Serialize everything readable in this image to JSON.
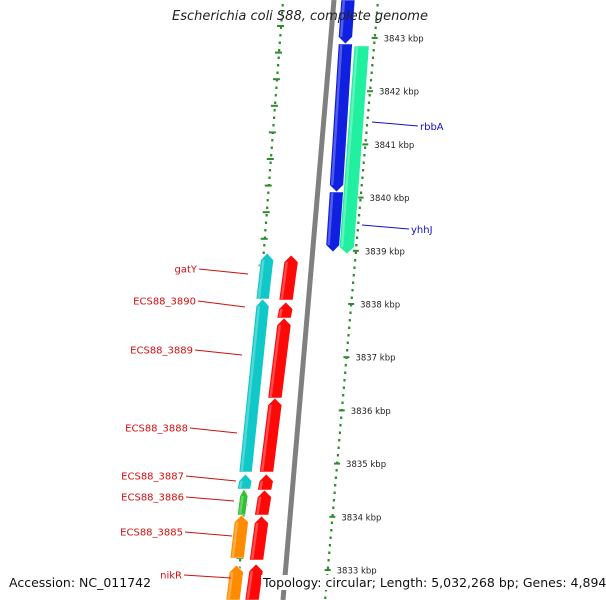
{
  "title": "Escherichia coli S88, complete genome",
  "footer": {
    "accession": "Accession: NC_011742",
    "topology": "Topology: circular; Length: 5,032,268 bp; Genes: 4,894"
  },
  "colors": {
    "backbone": "#808080",
    "ruler_dots": "#2e8b2e",
    "tick_text": "#222222",
    "plus_label": "#1010c8",
    "minus_label": "#d01010",
    "blue_gene": "#1020e0",
    "spring_gene": "#20f0a0",
    "red_gene": "#ff0808",
    "cyan_gene": "#10c8c8",
    "orange_gene": "#ff8c00",
    "green_gene": "#30c030"
  },
  "kbp_ticks": [
    "3843 kbp",
    "3842 kbp",
    "3841 kbp",
    "3840 kbp",
    "3839 kbp",
    "3838 kbp",
    "3837 kbp",
    "3836 kbp",
    "3835 kbp",
    "3834 kbp",
    "3833 kbp"
  ],
  "plus_labels": [
    "rbbA",
    "yhhJ"
  ],
  "minus_labels": [
    "gatY",
    "ECS88_3890",
    "ECS88_3889",
    "ECS88_3888",
    "ECS88_3887",
    "ECS88_3886",
    "ECS88_3885",
    "nikR"
  ]
}
